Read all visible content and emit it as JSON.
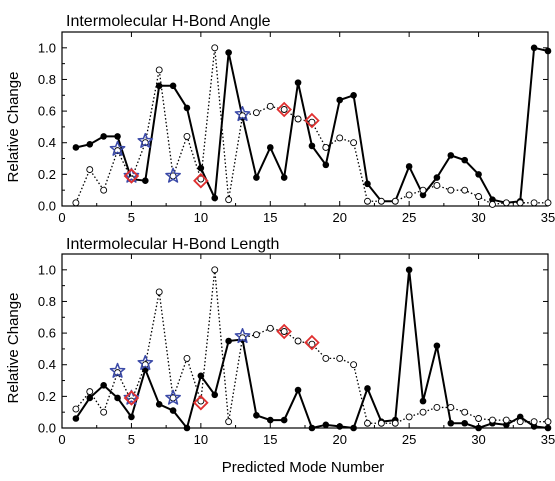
{
  "chart_data": [
    {
      "type": "line",
      "title": "Intermolecular H-Bond Angle",
      "xlabel": "",
      "ylabel": "Relative Change",
      "xlim": [
        0,
        35
      ],
      "ylim": [
        0,
        1.1
      ],
      "xticks": [
        "0",
        "5",
        "10",
        "15",
        "20",
        "25",
        "30",
        "35"
      ],
      "yticks": [
        "0.0",
        "0.2",
        "0.4",
        "0.6",
        "0.8",
        "1.0"
      ],
      "grid": false,
      "series": [
        {
          "style": "solid-filled-circles",
          "color": "#000000",
          "points": [
            [
              1,
              0.37
            ],
            [
              2,
              0.39
            ],
            [
              3,
              0.44
            ],
            [
              4,
              0.44
            ],
            [
              5,
              0.17
            ],
            [
              6,
              0.16
            ],
            [
              7,
              0.76
            ],
            [
              8,
              0.76
            ],
            [
              9,
              0.62
            ],
            [
              10,
              0.24
            ],
            [
              11,
              0.05
            ],
            [
              12,
              0.97
            ],
            [
              13,
              0.56
            ],
            [
              14,
              0.18
            ],
            [
              15,
              0.37
            ],
            [
              16,
              0.18
            ],
            [
              17,
              0.78
            ],
            [
              18,
              0.38
            ],
            [
              19,
              0.26
            ],
            [
              20,
              0.67
            ],
            [
              21,
              0.7
            ],
            [
              22,
              0.14
            ],
            [
              23,
              0.03
            ],
            [
              24,
              0.03
            ],
            [
              25,
              0.25
            ],
            [
              26,
              0.07
            ],
            [
              27,
              0.18
            ],
            [
              28,
              0.32
            ],
            [
              29,
              0.29
            ],
            [
              30,
              0.2
            ],
            [
              31,
              0.04
            ],
            [
              32,
              0.02
            ],
            [
              33,
              0.03
            ],
            [
              34,
              1.0
            ],
            [
              35,
              0.98
            ]
          ]
        },
        {
          "style": "dotted-open-circles",
          "color": "#000000",
          "points": [
            [
              1,
              0.02
            ],
            [
              2,
              0.23
            ],
            [
              3,
              0.1
            ],
            [
              4,
              0.35
            ],
            [
              5,
              0.17
            ],
            [
              6,
              0.4
            ],
            [
              7,
              0.86
            ],
            [
              8,
              0.19
            ],
            [
              9,
              0.44
            ],
            [
              10,
              0.17
            ],
            [
              11,
              1.0
            ],
            [
              12,
              0.04
            ],
            [
              13,
              0.57
            ],
            [
              14,
              0.59
            ],
            [
              15,
              0.63
            ],
            [
              16,
              0.61
            ],
            [
              17,
              0.55
            ],
            [
              18,
              0.53
            ],
            [
              19,
              0.37
            ],
            [
              20,
              0.43
            ],
            [
              21,
              0.4
            ],
            [
              22,
              0.03
            ],
            [
              23,
              0.03
            ],
            [
              24,
              0.03
            ],
            [
              25,
              0.07
            ],
            [
              26,
              0.1
            ],
            [
              27,
              0.13
            ],
            [
              28,
              0.1
            ],
            [
              29,
              0.1
            ],
            [
              30,
              0.06
            ],
            [
              31,
              0.01
            ],
            [
              32,
              0.02
            ],
            [
              33,
              0.02
            ],
            [
              34,
              0.02
            ],
            [
              35,
              0.02
            ]
          ]
        },
        {
          "style": "star-markers",
          "color": "#3b4aa8",
          "points": [
            [
              4,
              0.36
            ],
            [
              5,
              0.19
            ],
            [
              6,
              0.41
            ],
            [
              8,
              0.19
            ],
            [
              13,
              0.58
            ]
          ]
        },
        {
          "style": "diamond-markers",
          "color": "#e03030",
          "points": [
            [
              5,
              0.19
            ],
            [
              10,
              0.16
            ],
            [
              16,
              0.61
            ],
            [
              18,
              0.54
            ]
          ]
        }
      ]
    },
    {
      "type": "line",
      "title": "Intermolecular H-Bond Length",
      "xlabel": "Predicted Mode Number",
      "ylabel": "Relative Change",
      "xlim": [
        0,
        35
      ],
      "ylim": [
        0,
        1.1
      ],
      "xticks": [
        "0",
        "5",
        "10",
        "15",
        "20",
        "25",
        "30",
        "35"
      ],
      "yticks": [
        "0.0",
        "0.2",
        "0.4",
        "0.6",
        "0.8",
        "1.0"
      ],
      "grid": false,
      "series": [
        {
          "style": "solid-filled-circles",
          "color": "#000000",
          "points": [
            [
              1,
              0.06
            ],
            [
              2,
              0.19
            ],
            [
              3,
              0.27
            ],
            [
              4,
              0.19
            ],
            [
              5,
              0.07
            ],
            [
              6,
              0.37
            ],
            [
              7,
              0.15
            ],
            [
              8,
              0.11
            ],
            [
              9,
              0.0
            ],
            [
              10,
              0.33
            ],
            [
              11,
              0.21
            ],
            [
              12,
              0.55
            ],
            [
              13,
              0.56
            ],
            [
              14,
              0.08
            ],
            [
              15,
              0.05
            ],
            [
              16,
              0.05
            ],
            [
              17,
              0.24
            ],
            [
              18,
              0.0
            ],
            [
              19,
              0.02
            ],
            [
              20,
              0.01
            ],
            [
              21,
              0.0
            ],
            [
              22,
              0.25
            ],
            [
              23,
              0.04
            ],
            [
              24,
              0.05
            ],
            [
              25,
              1.0
            ],
            [
              26,
              0.17
            ],
            [
              27,
              0.52
            ],
            [
              28,
              0.03
            ],
            [
              29,
              0.03
            ],
            [
              30,
              0.0
            ],
            [
              31,
              0.03
            ],
            [
              32,
              0.02
            ],
            [
              33,
              0.07
            ],
            [
              34,
              0.01
            ],
            [
              35,
              0.0
            ]
          ]
        },
        {
          "style": "dotted-open-circles",
          "color": "#000000",
          "points": [
            [
              1,
              0.12
            ],
            [
              2,
              0.23
            ],
            [
              3,
              0.1
            ],
            [
              4,
              0.35
            ],
            [
              5,
              0.17
            ],
            [
              6,
              0.4
            ],
            [
              7,
              0.86
            ],
            [
              8,
              0.19
            ],
            [
              9,
              0.44
            ],
            [
              10,
              0.17
            ],
            [
              11,
              1.0
            ],
            [
              12,
              0.04
            ],
            [
              13,
              0.57
            ],
            [
              14,
              0.59
            ],
            [
              15,
              0.63
            ],
            [
              16,
              0.61
            ],
            [
              17,
              0.55
            ],
            [
              18,
              0.53
            ],
            [
              19,
              0.44
            ],
            [
              20,
              0.44
            ],
            [
              21,
              0.4
            ],
            [
              22,
              0.03
            ],
            [
              23,
              0.03
            ],
            [
              24,
              0.03
            ],
            [
              25,
              0.07
            ],
            [
              26,
              0.1
            ],
            [
              27,
              0.13
            ],
            [
              28,
              0.13
            ],
            [
              29,
              0.1
            ],
            [
              30,
              0.06
            ],
            [
              31,
              0.05
            ],
            [
              32,
              0.05
            ],
            [
              33,
              0.04
            ],
            [
              34,
              0.04
            ],
            [
              35,
              0.04
            ]
          ]
        },
        {
          "style": "star-markers",
          "color": "#3b4aa8",
          "points": [
            [
              4,
              0.36
            ],
            [
              5,
              0.19
            ],
            [
              6,
              0.41
            ],
            [
              8,
              0.19
            ],
            [
              13,
              0.58
            ]
          ]
        },
        {
          "style": "diamond-markers",
          "color": "#e03030",
          "points": [
            [
              5,
              0.19
            ],
            [
              10,
              0.16
            ],
            [
              16,
              0.61
            ],
            [
              18,
              0.54
            ]
          ]
        }
      ]
    }
  ]
}
